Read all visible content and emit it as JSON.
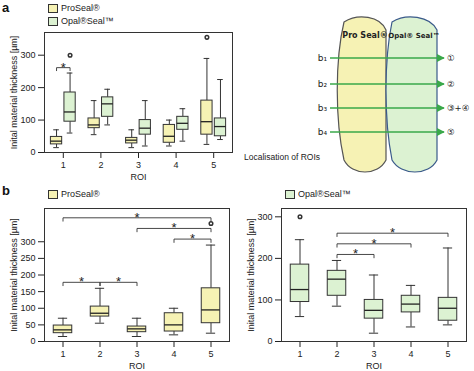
{
  "panel_labels": [
    "a",
    "b"
  ],
  "chart_data": [
    {
      "type": "box",
      "xlabel": "ROI",
      "ylabel": "Inital material thickness [µm]",
      "categories": [
        "1",
        "2",
        "3",
        "4",
        "5"
      ],
      "ylim": [
        0,
        370
      ],
      "yticks": [
        0,
        100,
        200,
        300
      ],
      "grid": false,
      "legend": "top-left",
      "series": [
        {
          "name": "ProSeal®",
          "color": "#f6f2b4",
          "boxes": [
            {
              "min": 15,
              "q1": 25,
              "median": 35,
              "q3": 48,
              "max": 70,
              "outliers": []
            },
            {
              "min": 55,
              "q1": 75,
              "median": 85,
              "q3": 105,
              "max": 160,
              "outliers": []
            },
            {
              "min": 15,
              "q1": 28,
              "median": 38,
              "q3": 45,
              "max": 70,
              "outliers": []
            },
            {
              "min": 20,
              "q1": 30,
              "median": 50,
              "q3": 85,
              "max": 100,
              "outliers": []
            },
            {
              "min": 25,
              "q1": 55,
              "median": 95,
              "q3": 160,
              "max": 290,
              "outliers": [
                355
              ]
            }
          ]
        },
        {
          "name": "Opal®Seal™",
          "color": "#dcf2d2",
          "boxes": [
            {
              "min": 60,
              "q1": 95,
              "median": 125,
              "q3": 185,
              "max": 245,
              "outliers": [
                300
              ]
            },
            {
              "min": 85,
              "q1": 110,
              "median": 150,
              "q3": 170,
              "max": 195,
              "outliers": []
            },
            {
              "min": 20,
              "q1": 55,
              "median": 75,
              "q3": 100,
              "max": 160,
              "outliers": []
            },
            {
              "min": 35,
              "q1": 70,
              "median": 90,
              "q3": 110,
              "max": 135,
              "outliers": []
            },
            {
              "min": 40,
              "q1": 50,
              "median": 80,
              "q3": 105,
              "max": 225,
              "outliers": []
            }
          ]
        }
      ],
      "significance": [
        {
          "category": "1",
          "label": "*"
        }
      ]
    },
    {
      "type": "box",
      "xlabel": "ROI",
      "ylabel": "Inital material thickness [µm]",
      "categories": [
        "1",
        "2",
        "3",
        "4",
        "5"
      ],
      "ylim": [
        0,
        400
      ],
      "yticks": [
        0,
        50,
        100,
        150,
        200,
        250,
        300
      ],
      "grid": false,
      "legend": "top-left",
      "series": [
        {
          "name": "ProSeal®",
          "color": "#f6f2b4",
          "boxes": [
            {
              "min": 15,
              "q1": 25,
              "median": 35,
              "q3": 48,
              "max": 70,
              "outliers": []
            },
            {
              "min": 55,
              "q1": 75,
              "median": 85,
              "q3": 105,
              "max": 160,
              "outliers": []
            },
            {
              "min": 15,
              "q1": 28,
              "median": 38,
              "q3": 45,
              "max": 70,
              "outliers": []
            },
            {
              "min": 20,
              "q1": 30,
              "median": 50,
              "q3": 85,
              "max": 100,
              "outliers": []
            },
            {
              "min": 25,
              "q1": 55,
              "median": 95,
              "q3": 160,
              "max": 290,
              "outliers": [
                355
              ]
            }
          ]
        }
      ],
      "significance": [
        {
          "between": [
            "1",
            "2"
          ],
          "label": "*"
        },
        {
          "between": [
            "2",
            "3"
          ],
          "label": "*"
        },
        {
          "between": [
            "4",
            "5"
          ],
          "label": "*"
        },
        {
          "between": [
            "3",
            "5"
          ],
          "label": "*"
        },
        {
          "between": [
            "1",
            "5"
          ],
          "label": "*"
        }
      ]
    },
    {
      "type": "box",
      "xlabel": "ROI",
      "ylabel": "Inital material thickness [µm]",
      "categories": [
        "1",
        "2",
        "3",
        "4",
        "5"
      ],
      "ylim": [
        0,
        320
      ],
      "yticks": [
        0,
        100,
        200,
        300
      ],
      "grid": false,
      "legend": "top-left",
      "series": [
        {
          "name": "Opal®Seal™",
          "color": "#dcf2d2",
          "boxes": [
            {
              "min": 60,
              "q1": 95,
              "median": 125,
              "q3": 185,
              "max": 245,
              "outliers": [
                300
              ]
            },
            {
              "min": 85,
              "q1": 110,
              "median": 150,
              "q3": 170,
              "max": 195,
              "outliers": []
            },
            {
              "min": 20,
              "q1": 55,
              "median": 75,
              "q3": 100,
              "max": 160,
              "outliers": []
            },
            {
              "min": 35,
              "q1": 70,
              "median": 90,
              "q3": 110,
              "max": 135,
              "outliers": []
            },
            {
              "min": 40,
              "q1": 50,
              "median": 80,
              "q3": 105,
              "max": 225,
              "outliers": []
            }
          ]
        }
      ],
      "significance": [
        {
          "between": [
            "2",
            "3"
          ],
          "label": "*"
        },
        {
          "between": [
            "2",
            "4"
          ],
          "label": "*"
        },
        {
          "between": [
            "2",
            "5"
          ],
          "label": "*"
        }
      ]
    }
  ],
  "diagram": {
    "title": "Localisation of ROIs",
    "shapes": [
      {
        "label": "Pro Seal®",
        "color": "#f6f2b4"
      },
      {
        "label": "Opal® Seal™",
        "color": "#dcf2d2"
      }
    ],
    "rows": [
      {
        "line": "b₁",
        "roi": "①"
      },
      {
        "line": "b₂",
        "roi": "②"
      },
      {
        "line": "b₃",
        "roi": "③+④"
      },
      {
        "line": "b₄",
        "roi": "⑤"
      }
    ]
  }
}
